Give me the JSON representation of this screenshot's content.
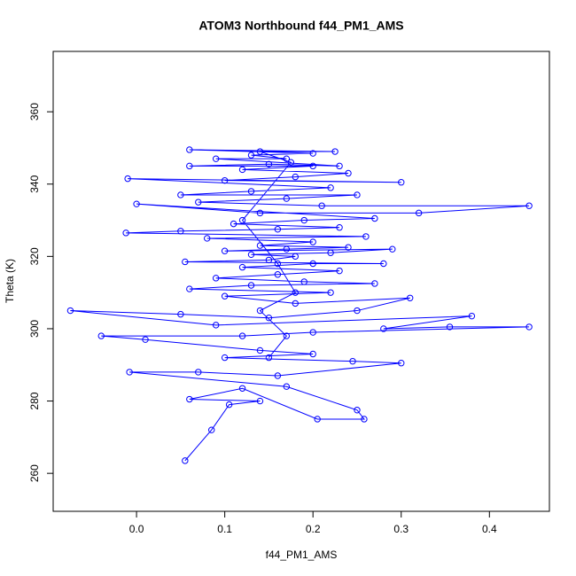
{
  "chart_data": {
    "type": "line",
    "title": "ATOM3 Northbound f44_PM1_AMS",
    "x_label": "f44_PM1_AMS",
    "y_label": "Theta (K)",
    "xlim": [
      -0.0945,
      0.468
    ],
    "ylim": [
      249.5,
      376.7
    ],
    "xticks": [
      {
        "value": 0,
        "label": "0.0"
      },
      0.1,
      0.2,
      0.3,
      0.4
    ],
    "yticks": [
      260,
      280,
      300,
      320,
      340,
      360
    ],
    "markers": true,
    "x": [
      0.055,
      0.085,
      0.105,
      0.14,
      0.06,
      0.12,
      0.205,
      0.258,
      0.25,
      0.17,
      -0.008,
      0.07,
      0.16,
      0.3,
      0.245,
      0.1,
      0.2,
      0.14,
      0.01,
      -0.04,
      0.12,
      0.2,
      0.445,
      0.355,
      0.28,
      0.38,
      0.09,
      -0.075,
      0.05,
      0.15,
      0.25,
      0.31,
      0.18,
      0.1,
      0.22,
      0.06,
      0.13,
      0.27,
      0.19,
      0.09,
      0.16,
      0.23,
      0.12,
      0.2,
      0.28,
      0.055,
      0.15,
      0.18,
      0.13,
      0.22,
      0.29,
      0.1,
      0.17,
      0.24,
      0.14,
      0.2,
      0.08,
      0.26,
      -0.012,
      0.05,
      0.16,
      0.23,
      0.11,
      0.19,
      0.27,
      0.0,
      0.14,
      0.32,
      0.445,
      0.21,
      0.07,
      0.17,
      0.25,
      0.05,
      0.13,
      0.22,
      -0.01,
      0.3,
      0.1,
      0.18,
      0.24,
      0.12,
      0.2,
      0.06,
      0.15,
      0.23,
      0.09,
      0.17,
      0.13,
      0.2,
      0.06,
      0.225,
      0.14,
      0.175,
      0.12,
      0.16,
      0.18,
      0.14,
      0.17,
      0.15
    ],
    "series": [
      {
        "color": "#0000ff",
        "values": [
          263.5,
          272,
          279,
          280,
          280.5,
          283.5,
          275,
          275,
          277.5,
          284,
          288,
          288,
          287,
          290.5,
          291,
          292,
          293,
          294,
          297,
          298,
          298,
          299,
          300.5,
          300.5,
          300,
          303.5,
          301,
          305,
          304,
          303,
          305,
          308.5,
          307,
          309,
          310,
          311,
          312,
          312.5,
          313,
          314,
          315,
          316,
          317,
          318,
          318,
          318.5,
          319,
          320,
          320.5,
          321,
          322,
          321.5,
          322,
          322.5,
          323,
          324,
          325,
          325.5,
          326.5,
          327,
          327.5,
          328,
          329,
          330,
          330.5,
          334.5,
          332,
          332,
          334,
          334,
          335,
          336,
          337,
          337,
          338,
          339,
          341.5,
          340.5,
          341,
          342,
          343,
          344,
          345,
          345,
          345.5,
          345,
          347,
          347,
          348,
          348.5,
          349.5,
          349,
          349,
          346,
          330,
          318,
          310,
          305,
          298,
          292
        ]
      }
    ]
  }
}
